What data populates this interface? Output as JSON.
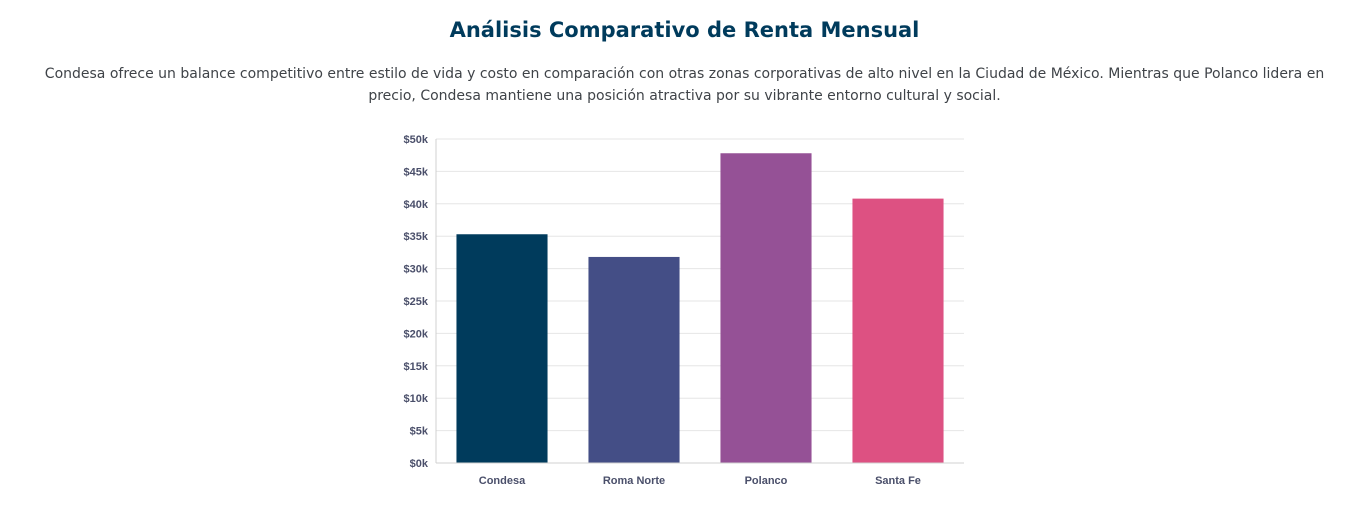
{
  "header": {
    "title": "Análisis Comparativo de Renta Mensual",
    "description": "Condesa ofrece un balance competitivo entre estilo de vida y costo en comparación con otras zonas corporativas de alto nivel en la Ciudad de México. Mientras que Polanco lidera en precio, Condesa mantiene una posición atractiva por su vibrante entorno cultural y social."
  },
  "chart_data": {
    "type": "bar",
    "categories": [
      "Condesa",
      "Roma Norte",
      "Polanco",
      "Santa Fe"
    ],
    "values": [
      35300,
      31800,
      47800,
      40800
    ],
    "colors": [
      "#003b5c",
      "#444e86",
      "#955196",
      "#dd5182"
    ],
    "ylim": [
      0,
      50000
    ],
    "yticks": [
      "$0k",
      "$5k",
      "$10k",
      "$15k",
      "$20k",
      "$25k",
      "$30k",
      "$35k",
      "$40k",
      "$45k",
      "$50k"
    ],
    "grid": true,
    "legend": "none",
    "title": "",
    "xlabel": "",
    "ylabel": ""
  }
}
